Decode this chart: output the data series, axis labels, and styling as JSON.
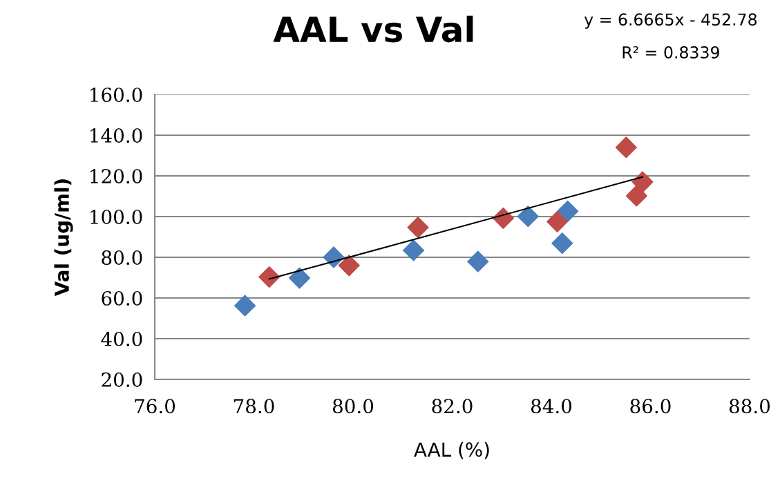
{
  "chart_data": {
    "type": "scatter",
    "title": "AAL vs Val",
    "xlabel": "AAL (%)",
    "ylabel": "Val (ug/ml)",
    "annotations": [
      "y = 6.6665x - 452.78",
      "R² = 0.8339"
    ],
    "series": [
      {
        "color": "#4a7ebb",
        "marker": "diamond",
        "x": [
          77.82,
          78.92,
          79.61,
          81.22,
          82.52,
          83.53,
          84.22,
          84.33
        ],
        "values": [
          56.2,
          69.8,
          80.0,
          83.4,
          77.9,
          100.1,
          86.9,
          102.6
        ]
      },
      {
        "color": "#be4b48",
        "marker": "diamond",
        "x": [
          78.31,
          79.92,
          81.31,
          83.03,
          84.12,
          85.51,
          85.84,
          85.72
        ],
        "values": [
          70.3,
          76.0,
          94.7,
          99.2,
          97.5,
          134.0,
          117.0,
          110.2
        ]
      },
      {
        "type": "line",
        "color": "#000000",
        "x": [
          78.31,
          85.84
        ],
        "values": [
          69.3,
          119.5
        ]
      }
    ],
    "xlim": [
      76,
      88
    ],
    "ylim": [
      20,
      160
    ],
    "xticks": [
      {
        "value": 76,
        "label": "76.0"
      },
      {
        "value": 78,
        "label": "78.0"
      },
      {
        "value": 80,
        "label": "80.0"
      },
      {
        "value": 82,
        "label": "82.0"
      },
      {
        "value": 84,
        "label": "84.0"
      },
      {
        "value": 86,
        "label": "86.0"
      },
      {
        "value": 88,
        "label": "88.0"
      }
    ],
    "yticks": [
      {
        "value": 20,
        "label": "20.0"
      },
      {
        "value": 40,
        "label": "40.0"
      },
      {
        "value": 60,
        "label": "60.0"
      },
      {
        "value": 80,
        "label": "80.0"
      },
      {
        "value": 100,
        "label": "100.0"
      },
      {
        "value": 120,
        "label": "120.0"
      },
      {
        "value": 140,
        "label": "140.0"
      },
      {
        "value": 160,
        "label": "160.0"
      }
    ],
    "grid": "y",
    "legend": false
  }
}
